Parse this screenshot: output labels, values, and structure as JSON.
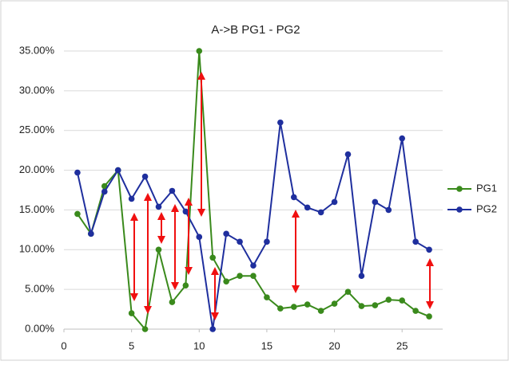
{
  "chart_data": {
    "type": "line",
    "title": "A->B PG1 - PG2",
    "x": [
      1,
      2,
      3,
      4,
      5,
      6,
      7,
      8,
      9,
      10,
      11,
      12,
      13,
      14,
      15,
      16,
      17,
      18,
      19,
      20,
      21,
      22,
      23,
      24,
      25,
      26,
      27
    ],
    "series": [
      {
        "name": "PG1",
        "color": "#3a8a1c",
        "values": [
          14.5,
          12,
          18,
          20,
          2,
          0,
          10,
          3.4,
          5.5,
          35,
          9,
          6,
          6.7,
          6.7,
          4,
          2.6,
          2.8,
          3.1,
          2.3,
          3.2,
          4.7,
          2.9,
          3,
          3.7,
          3.6,
          2.3,
          1.6
        ]
      },
      {
        "name": "PG2",
        "color": "#1f2f9e",
        "values": [
          19.7,
          12,
          17.3,
          20,
          16.4,
          19.2,
          15.4,
          17.4,
          14.8,
          11.6,
          0,
          12,
          11,
          8,
          11,
          26,
          16.6,
          15.3,
          14.7,
          16,
          22,
          6.7,
          16,
          15,
          24,
          11,
          10
        ]
      }
    ],
    "xlim": [
      0,
      28
    ],
    "xticks": [
      0,
      5,
      10,
      15,
      20,
      25
    ],
    "ylim": [
      0,
      35
    ],
    "yticks": [
      {
        "value": 0,
        "label": "0.00%"
      },
      {
        "value": 5,
        "label": "5.00%"
      },
      {
        "value": 10,
        "label": "10.00%"
      },
      {
        "value": 15,
        "label": "15.00%"
      },
      {
        "value": 20,
        "label": "20.00%"
      },
      {
        "value": 25,
        "label": "25.00%"
      },
      {
        "value": 30,
        "label": "30.00%"
      },
      {
        "value": 35,
        "label": "35.00%"
      }
    ],
    "grid": true,
    "legend": "right"
  }
}
